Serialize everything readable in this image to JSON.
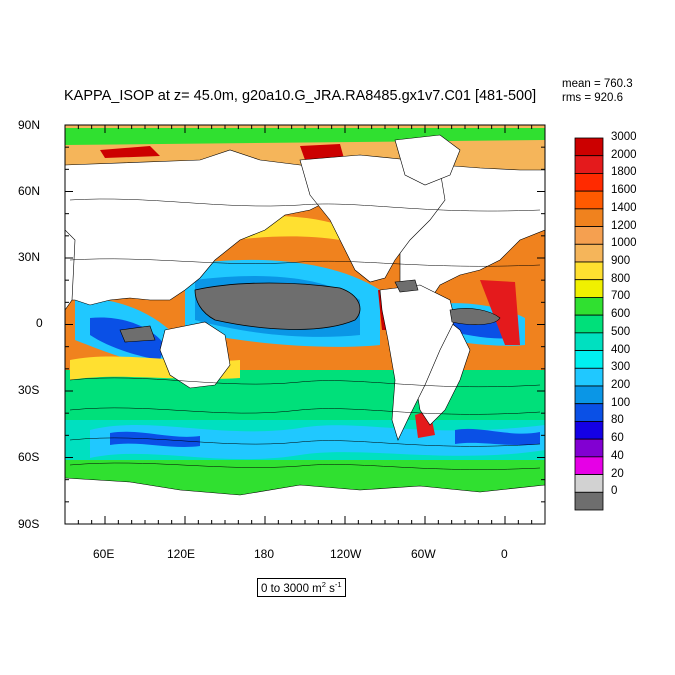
{
  "title": "KAPPA_ISOP at z=  45.0m, g20a10.G_JRA.RA8485.gx1v7.C01 [481-500]",
  "stats": {
    "mean": "mean = 760.3",
    "rms": "rms = 920.6"
  },
  "y_ticks": [
    "90N",
    "60N",
    "30N",
    "0",
    "30S",
    "60S",
    "90S"
  ],
  "x_ticks": [
    "60E",
    "120E",
    "180",
    "120W",
    "60W",
    "0"
  ],
  "units": {
    "text": "0 to 3000 m",
    "exp1": "2",
    "mid": " s",
    "exp2": "-1"
  },
  "colorbar": {
    "labels": [
      "3000",
      "2000",
      "1800",
      "1600",
      "1400",
      "1200",
      "1000",
      "900",
      "800",
      "700",
      "600",
      "500",
      "400",
      "300",
      "200",
      "100",
      "80",
      "60",
      "40",
      "20",
      "0"
    ],
    "colors": [
      "#cc0000",
      "#e41a1c",
      "#ff2a00",
      "#ff5a00",
      "#f0821e",
      "#f5a050",
      "#f5b55a",
      "#ffe030",
      "#f0f000",
      "#30e030",
      "#00e07a",
      "#00e0c0",
      "#00f0f0",
      "#20c8ff",
      "#0a96e6",
      "#0a50e6",
      "#1400e6",
      "#8200d2",
      "#e600e6",
      "#d2d2d2",
      "#6e6e6e"
    ]
  },
  "colors": {
    "land": "#ffffff",
    "nodata": "#6e6e6e",
    "open_ocean": "#f0821e"
  }
}
